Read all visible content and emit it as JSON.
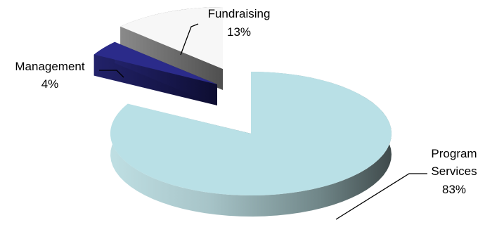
{
  "chart_data": {
    "type": "pie",
    "style": "3d-exploded",
    "title": "",
    "slices": [
      {
        "label": "Program Services",
        "value": 83,
        "value_label": "83%",
        "color": "#b9e0e6"
      },
      {
        "label": "Management",
        "value": 4,
        "value_label": "4%",
        "color": "#2b2b8a"
      },
      {
        "label": "Fundraising",
        "value": 13,
        "value_label": "13%",
        "color": "#f7f7f7"
      }
    ],
    "legend": "none",
    "data_labels": "outside-with-leader-lines"
  }
}
